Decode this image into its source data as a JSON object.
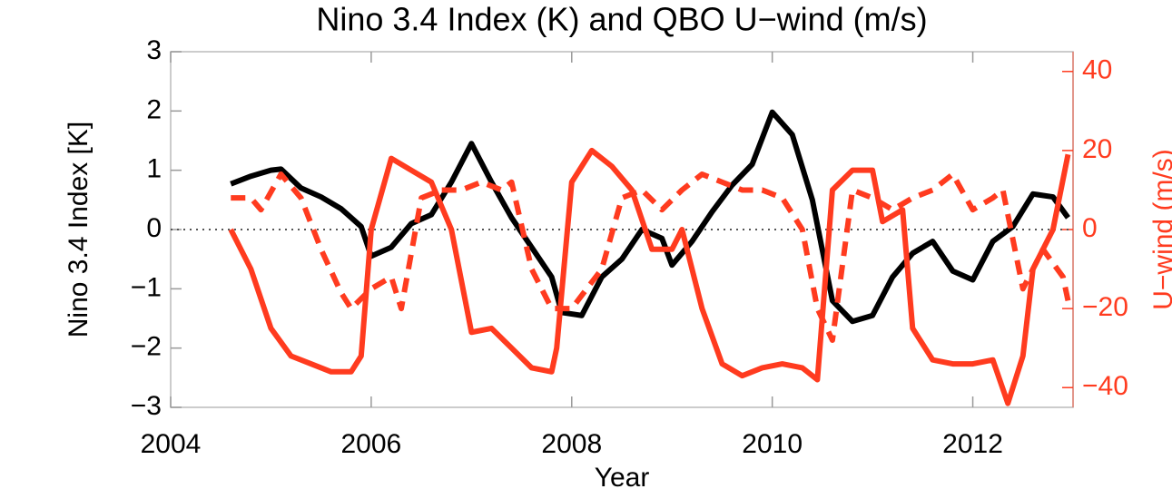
{
  "chart_data": {
    "type": "line",
    "title": "Nino 3.4 Index (K) and QBO U−wind (m/s)",
    "x_label": "Year",
    "y_label": "Nino 3.4 Index [K]",
    "y2_label": "U−wind (m/s)",
    "y2_color": "#ff3b1f",
    "xlim": [
      2004,
      2013
    ],
    "xticks": [
      2004,
      2006,
      2008,
      2010,
      2012
    ],
    "ylim": [
      -3,
      3
    ],
    "yticks": [
      {
        "value": -3,
        "label": "−3"
      },
      {
        "value": -2,
        "label": "−2"
      },
      {
        "value": -1,
        "label": "−1"
      },
      0,
      1,
      2,
      3
    ],
    "y2lim": [
      -45,
      45
    ],
    "y2ticks": [
      {
        "value": -40,
        "label": "−40"
      },
      {
        "value": -20,
        "label": "−20"
      },
      0,
      20,
      40
    ],
    "reference_line": {
      "value": 0,
      "style": "dotted"
    },
    "series": [
      {
        "axis": "y",
        "color": "#000000",
        "style": "solid",
        "x": [
          2004.6,
          2004.8,
          2005.0,
          2005.1,
          2005.3,
          2005.5,
          2005.7,
          2005.9,
          2006.0,
          2006.2,
          2006.4,
          2006.6,
          2006.8,
          2007.0,
          2007.2,
          2007.4,
          2007.6,
          2007.8,
          2007.9,
          2008.1,
          2008.3,
          2008.5,
          2008.7,
          2008.9,
          2009.0,
          2009.2,
          2009.4,
          2009.6,
          2009.8,
          2010.0,
          2010.2,
          2010.4,
          2010.6,
          2010.8,
          2011.0,
          2011.2,
          2011.4,
          2011.6,
          2011.8,
          2012.0,
          2012.2,
          2012.4,
          2012.6,
          2012.8,
          2012.95
        ],
        "values": [
          0.77,
          0.9,
          1.0,
          1.02,
          0.7,
          0.55,
          0.35,
          0.05,
          -0.45,
          -0.3,
          0.1,
          0.25,
          0.8,
          1.45,
          0.8,
          0.2,
          -0.3,
          -0.8,
          -1.4,
          -1.45,
          -0.8,
          -0.5,
          0.0,
          -0.15,
          -0.6,
          -0.2,
          0.3,
          0.75,
          1.1,
          1.98,
          1.6,
          0.5,
          -1.2,
          -1.55,
          -1.45,
          -0.8,
          -0.4,
          -0.2,
          -0.7,
          -0.85,
          -0.2,
          0.05,
          0.6,
          0.55,
          0.2
        ]
      },
      {
        "axis": "y2",
        "color": "#ff3b1f",
        "style": "solid",
        "x": [
          2004.6,
          2004.8,
          2005.0,
          2005.2,
          2005.4,
          2005.6,
          2005.8,
          2005.9,
          2006.0,
          2006.2,
          2006.4,
          2006.6,
          2006.8,
          2007.0,
          2007.2,
          2007.4,
          2007.6,
          2007.8,
          2007.85,
          2008.0,
          2008.2,
          2008.4,
          2008.6,
          2008.8,
          2009.0,
          2009.1,
          2009.3,
          2009.5,
          2009.7,
          2009.9,
          2010.1,
          2010.3,
          2010.45,
          2010.6,
          2010.8,
          2011.0,
          2011.1,
          2011.3,
          2011.4,
          2011.6,
          2011.8,
          2012.0,
          2012.2,
          2012.35,
          2012.5,
          2012.6,
          2012.8,
          2012.95
        ],
        "values": [
          0,
          -10,
          -25,
          -32,
          -34,
          -36,
          -36,
          -32,
          0,
          18,
          15,
          12,
          0,
          -26,
          -25,
          -30,
          -35,
          -36,
          -30,
          12,
          20,
          16,
          10,
          -5,
          -5,
          0,
          -20,
          -34,
          -37,
          -35,
          -34,
          -35,
          -38,
          10,
          15,
          15,
          2,
          5,
          -25,
          -33,
          -34,
          -34,
          -33,
          -44,
          -32,
          -10,
          0,
          19
        ]
      },
      {
        "axis": "y2",
        "color": "#ff3b1f",
        "style": "dashed",
        "x": [
          2004.6,
          2004.8,
          2004.9,
          2005.1,
          2005.3,
          2005.5,
          2005.7,
          2005.8,
          2006.0,
          2006.2,
          2006.3,
          2006.5,
          2006.7,
          2006.9,
          2007.1,
          2007.3,
          2007.4,
          2007.6,
          2007.8,
          2008.0,
          2008.3,
          2008.5,
          2008.7,
          2008.9,
          2009.1,
          2009.3,
          2009.5,
          2009.7,
          2009.9,
          2010.1,
          2010.3,
          2010.45,
          2010.6,
          2010.8,
          2011.0,
          2011.2,
          2011.4,
          2011.6,
          2011.8,
          2012.0,
          2012.2,
          2012.3,
          2012.5,
          2012.7,
          2012.9,
          2012.95
        ],
        "values": [
          8,
          8,
          5,
          14,
          8,
          -5,
          -16,
          -20,
          -15,
          -12,
          -20,
          8,
          10,
          10,
          12,
          10,
          12,
          -10,
          -20,
          -20,
          -10,
          8,
          10,
          5,
          10,
          14,
          12,
          10,
          10,
          8,
          0,
          -20,
          -28,
          10,
          8,
          5,
          8,
          10,
          14,
          5,
          8,
          10,
          -15,
          -5,
          -12,
          -18
        ]
      }
    ]
  }
}
